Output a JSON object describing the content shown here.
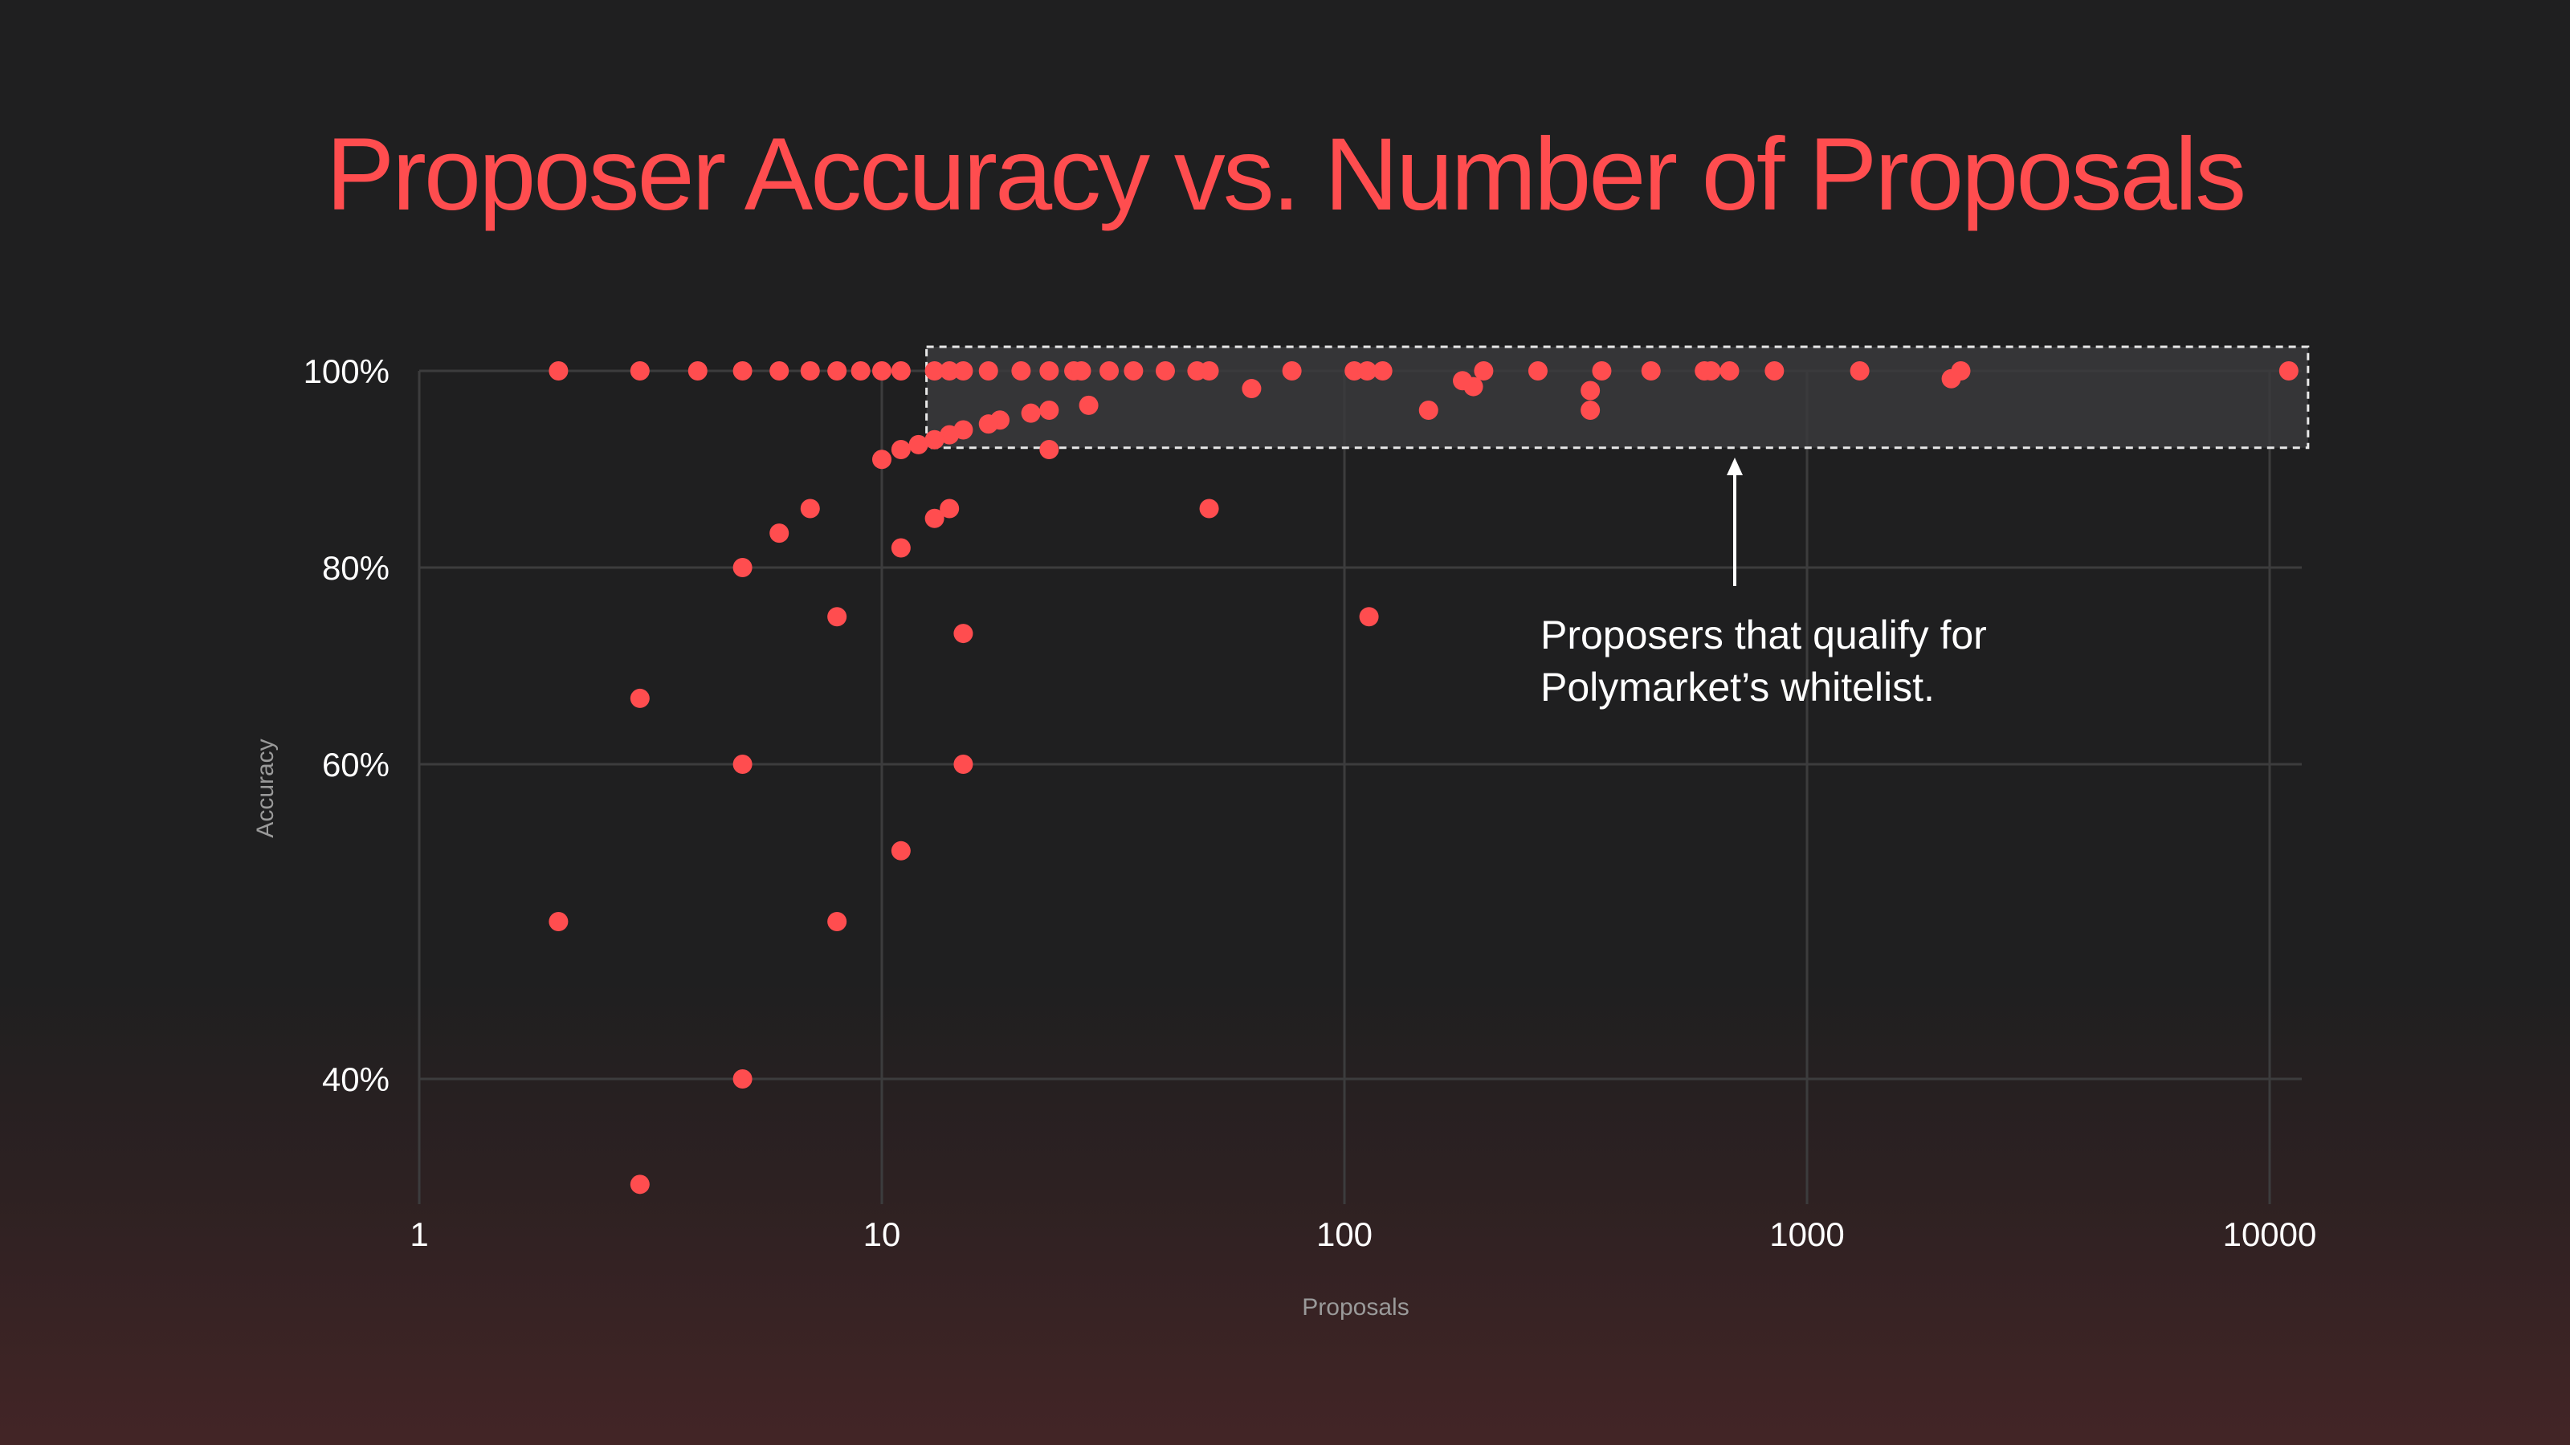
{
  "title": "Proposer Accuracy vs. Number of Proposals",
  "colors": {
    "accent": "#ff4d4f",
    "text": "#ffffff",
    "axis_title": "#9a9a9a",
    "grid": "#3c3c3d",
    "highlight_fill": "#3a3a3c",
    "background": "#1f1f20"
  },
  "chart_data": {
    "type": "scatter",
    "title": "Proposer Accuracy vs. Number of Proposals",
    "xlabel": "Proposals",
    "ylabel": "Accuracy",
    "x_scale": "log",
    "xlim": [
      1,
      10000
    ],
    "ylim": [
      0.35,
      1.0
    ],
    "x_ticks": [
      1,
      10,
      100,
      1000,
      10000
    ],
    "x_tick_labels": [
      "1",
      "10",
      "100",
      "1000",
      "10000"
    ],
    "y_ticks": [
      0.4,
      0.6,
      0.8,
      1.0
    ],
    "y_tick_labels": [
      "40%",
      "60%",
      "80%",
      "100%"
    ],
    "grid": true,
    "legend": "none",
    "series": [
      {
        "color": "#ff4d4f",
        "points": [
          [
            2,
            1.0
          ],
          [
            3,
            1.0
          ],
          [
            4,
            1.0
          ],
          [
            5,
            1.0
          ],
          [
            6,
            1.0
          ],
          [
            7,
            1.0
          ],
          [
            8,
            1.0
          ],
          [
            9,
            1.0
          ],
          [
            10,
            1.0
          ],
          [
            11,
            1.0
          ],
          [
            13,
            1.0
          ],
          [
            14,
            1.0
          ],
          [
            15,
            1.0
          ],
          [
            17,
            1.0
          ],
          [
            20,
            1.0
          ],
          [
            23,
            1.0
          ],
          [
            26,
            1.0
          ],
          [
            27,
            1.0
          ],
          [
            31,
            1.0
          ],
          [
            35,
            1.0
          ],
          [
            41,
            1.0
          ],
          [
            48,
            1.0
          ],
          [
            51,
            1.0
          ],
          [
            77,
            1.0
          ],
          [
            105,
            1.0
          ],
          [
            112,
            1.0
          ],
          [
            121,
            1.0
          ],
          [
            200,
            1.0
          ],
          [
            262,
            1.0
          ],
          [
            360,
            1.0
          ],
          [
            460,
            1.0
          ],
          [
            600,
            1.0
          ],
          [
            620,
            1.0
          ],
          [
            680,
            1.0
          ],
          [
            850,
            1.0
          ],
          [
            1300,
            1.0
          ],
          [
            2150,
            1.0
          ],
          [
            11000,
            1.0
          ],
          [
            2050,
            0.992
          ],
          [
            180,
            0.99
          ],
          [
            190,
            0.984
          ],
          [
            63,
            0.982
          ],
          [
            340,
            0.98
          ],
          [
            28,
            0.965
          ],
          [
            152,
            0.96
          ],
          [
            340,
            0.96
          ],
          [
            23,
            0.96
          ],
          [
            21,
            0.957
          ],
          [
            18,
            0.95
          ],
          [
            17,
            0.946
          ],
          [
            15,
            0.94
          ],
          [
            14,
            0.935
          ],
          [
            13,
            0.93
          ],
          [
            12,
            0.925
          ],
          [
            11,
            0.92
          ],
          [
            23,
            0.92
          ],
          [
            10,
            0.91
          ],
          [
            7,
            0.86
          ],
          [
            14,
            0.86
          ],
          [
            51,
            0.86
          ],
          [
            13,
            0.85
          ],
          [
            6,
            0.835
          ],
          [
            11,
            0.82
          ],
          [
            5,
            0.8
          ],
          [
            8,
            0.75
          ],
          [
            113,
            0.75
          ],
          [
            15,
            0.733
          ],
          [
            3,
            0.667
          ],
          [
            5,
            0.6
          ],
          [
            15,
            0.6
          ],
          [
            11,
            0.545
          ],
          [
            2,
            0.5
          ],
          [
            8,
            0.5
          ],
          [
            5,
            0.4
          ],
          [
            3,
            0.333
          ]
        ]
      }
    ],
    "highlight_region": {
      "x_range": [
        13,
        11000
      ],
      "y_range": [
        0.93,
        1.0
      ],
      "style": "dashed"
    },
    "annotation": {
      "lines": [
        "Proposers that qualify for",
        "Polymarket’s whitelist."
      ],
      "arrow_target": "highlight_region"
    }
  }
}
